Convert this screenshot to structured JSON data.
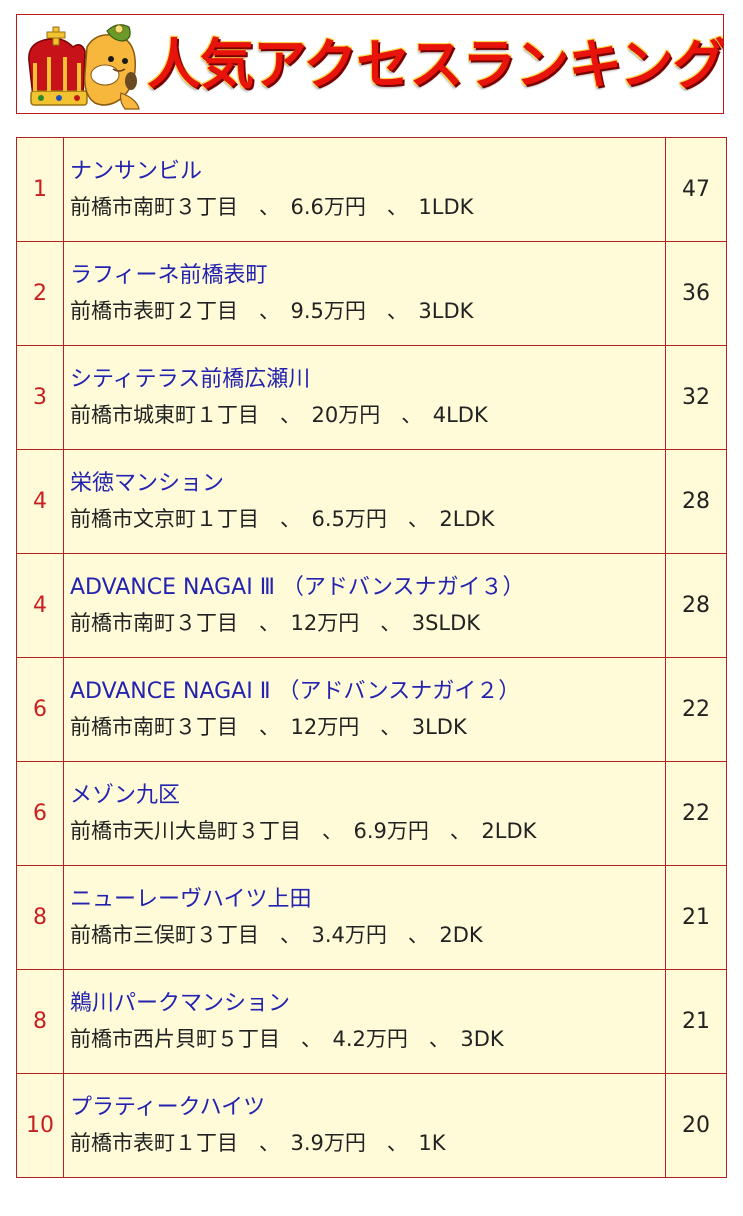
{
  "banner": {
    "title": "人気アクセスランキング"
  },
  "colors": {
    "border": "#b22222",
    "background": "#fffbd9",
    "link": "#2323b0",
    "rank": "#c82020",
    "title": "#e8140c"
  },
  "rows": [
    {
      "rank": "1",
      "name": "ナンサンビル",
      "detail": "前橋市南町３丁目　、　6.6万円　、　1LDK",
      "count": "47"
    },
    {
      "rank": "2",
      "name": "ラフィーネ前橋表町",
      "detail": "前橋市表町２丁目　、　9.5万円　、　3LDK",
      "count": "36"
    },
    {
      "rank": "3",
      "name": "シティテラス前橋広瀬川",
      "detail": "前橋市城東町１丁目　、　20万円　、　4LDK",
      "count": "32"
    },
    {
      "rank": "4",
      "name": "栄徳マンション",
      "detail": "前橋市文京町１丁目　、　6.5万円　、　2LDK",
      "count": "28"
    },
    {
      "rank": "4",
      "name": "ADVANCE NAGAI Ⅲ （アドバンスナガイ３）",
      "detail": "前橋市南町３丁目　、　12万円　、　3SLDK",
      "count": "28"
    },
    {
      "rank": "6",
      "name": "ADVANCE NAGAI Ⅱ （アドバンスナガイ２）",
      "detail": "前橋市南町３丁目　、　12万円　、　3LDK",
      "count": "22"
    },
    {
      "rank": "6",
      "name": "メゾン九区",
      "detail": "前橋市天川大島町３丁目　、　6.9万円　、　2LDK",
      "count": "22"
    },
    {
      "rank": "8",
      "name": "ニューレーヴハイツ上田",
      "detail": "前橋市三俣町３丁目　、　3.4万円　、　2DK",
      "count": "21"
    },
    {
      "rank": "8",
      "name": "鵜川パークマンション",
      "detail": "前橋市西片貝町５丁目　、　4.2万円　、　3DK",
      "count": "21"
    },
    {
      "rank": "10",
      "name": "プラティークハイツ",
      "detail": "前橋市表町１丁目　、　3.9万円　、　1K",
      "count": "20"
    }
  ]
}
